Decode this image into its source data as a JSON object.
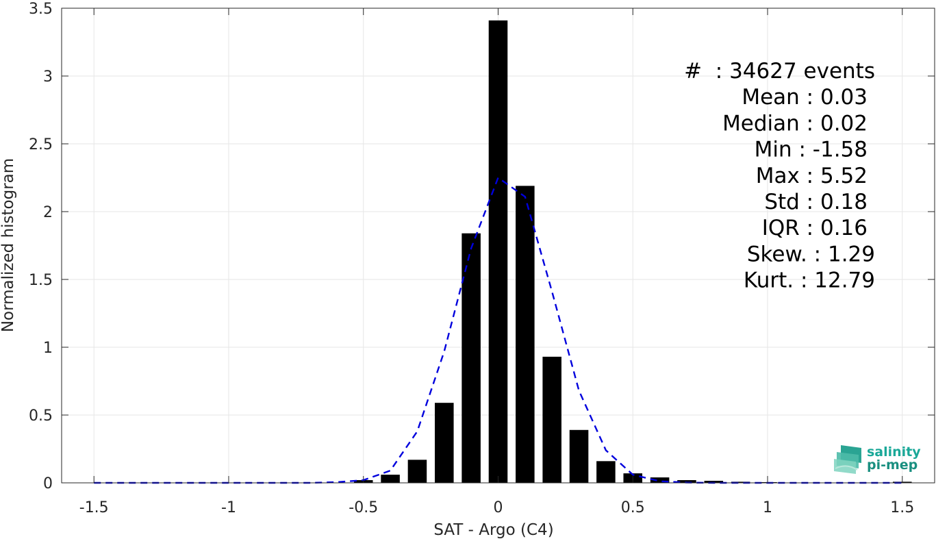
{
  "chart_data": {
    "type": "bar",
    "xlabel": "SAT - Argo (C4)",
    "ylabel": "Normalized histogram",
    "xlim": [
      -1.62,
      1.62
    ],
    "ylim": [
      0,
      3.5
    ],
    "grid": true,
    "x_ticks": [
      -1.5,
      -1,
      -0.5,
      0,
      0.5,
      1,
      1.5
    ],
    "x_tick_labels": [
      "-1.5",
      "-1",
      "-0.5",
      "0",
      "0.5",
      "1",
      "1.5"
    ],
    "y_ticks": [
      0,
      0.5,
      1,
      1.5,
      2,
      2.5,
      3,
      3.5
    ],
    "y_tick_labels": [
      "0",
      "0.5",
      "1",
      "1.5",
      "2",
      "2.5",
      "3",
      "3.5"
    ],
    "bar_width": 0.07,
    "bars": {
      "x": [
        -0.5,
        -0.4,
        -0.3,
        -0.2,
        -0.1,
        0,
        0.1,
        0.2,
        0.3,
        0.4,
        0.5,
        0.6,
        0.7,
        0.8,
        0.9,
        1.0,
        1.5
      ],
      "values": [
        0.02,
        0.06,
        0.17,
        0.59,
        1.84,
        3.41,
        2.19,
        0.93,
        0.39,
        0.16,
        0.07,
        0.04,
        0.02,
        0.015,
        0.008,
        0.005,
        0.008
      ],
      "color": "#000000"
    },
    "fit_line": {
      "x": [
        -1.5,
        -1.4,
        -1.3,
        -1.2,
        -1.1,
        -1.0,
        -0.9,
        -0.8,
        -0.7,
        -0.6,
        -0.5,
        -0.4,
        -0.3,
        -0.2,
        -0.1,
        0,
        0.1,
        0.2,
        0.3,
        0.4,
        0.5,
        0.6,
        0.7,
        0.8,
        0.9,
        1.0,
        1.1,
        1.2,
        1.3,
        1.4,
        1.5
      ],
      "values": [
        0,
        0,
        0,
        0,
        0,
        0,
        0,
        0,
        0,
        0.005,
        0.02,
        0.09,
        0.38,
        0.97,
        1.73,
        2.25,
        2.11,
        1.41,
        0.68,
        0.24,
        0.06,
        0.012,
        0.002,
        0,
        0,
        0,
        0,
        0,
        0,
        0,
        0
      ],
      "color": "#0000dd",
      "style": "dashed"
    },
    "annotations": [
      "#  : 34627 events",
      "Mean : 0.03",
      "Median : 0.02",
      "Min : -1.58",
      "Max : 5.52",
      "Std : 0.18",
      "IQR : 0.16",
      "Skew. : 1.29",
      "Kurt. : 12.79"
    ]
  },
  "logo": {
    "line1": "salinity",
    "line2": "pi-mep",
    "color": "#1aa898"
  }
}
